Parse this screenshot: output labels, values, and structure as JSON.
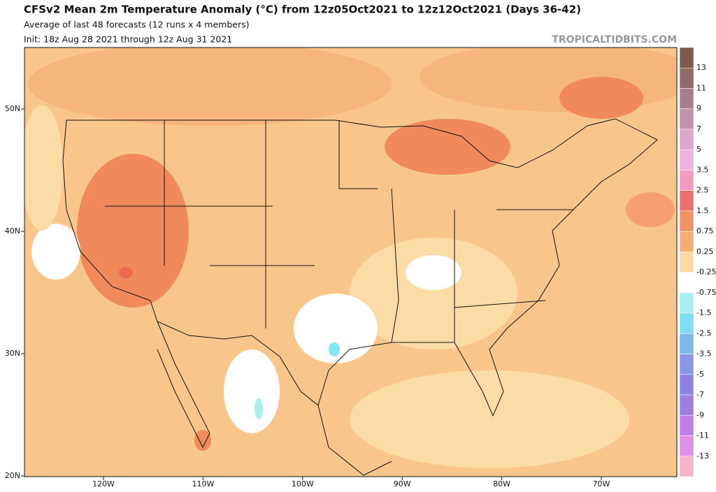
{
  "header": {
    "title": "CFSv2 Mean 2m Temperature Anomaly (°C) from 12z05Oct2021 to 12z12Oct2021 (Days 36-42)",
    "subtitle": "Average of last 48 forecasts (12 runs x 4 members)",
    "init": "Init: 18z Aug 28 2021 through 12z Aug 31 2021",
    "source": "TROPICALTIDBITS.COM"
  },
  "map": {
    "lat_labels": [
      "50N",
      "40N",
      "30N",
      "20N"
    ],
    "lon_labels": [
      "120W",
      "110W",
      "100W",
      "90W",
      "80W",
      "70W"
    ]
  },
  "colorbar": {
    "labels": [
      "13",
      "11",
      "9",
      "7",
      "5",
      "3.5",
      "2.5",
      "1.5",
      "0.75",
      "0.25",
      "-0.25",
      "-0.75",
      "-1.5",
      "-2.5",
      "-3.5",
      "-5",
      "-7",
      "-9",
      "-11",
      "-13"
    ],
    "colors": [
      "#7a5b4c",
      "#8f6a66",
      "#a87f8c",
      "#c393ad",
      "#dca7cd",
      "#f0b3e0",
      "#f49cc0",
      "#ee6f6f",
      "#f19266",
      "#f6ad72",
      "#fcd9a2",
      "#ffffff",
      "#a8f0f0",
      "#7fdff0",
      "#80b8ec",
      "#8c98e6",
      "#8d84e0",
      "#a07ee0",
      "#c07ee6",
      "#e08fe6",
      "#f5b6c8"
    ]
  }
}
